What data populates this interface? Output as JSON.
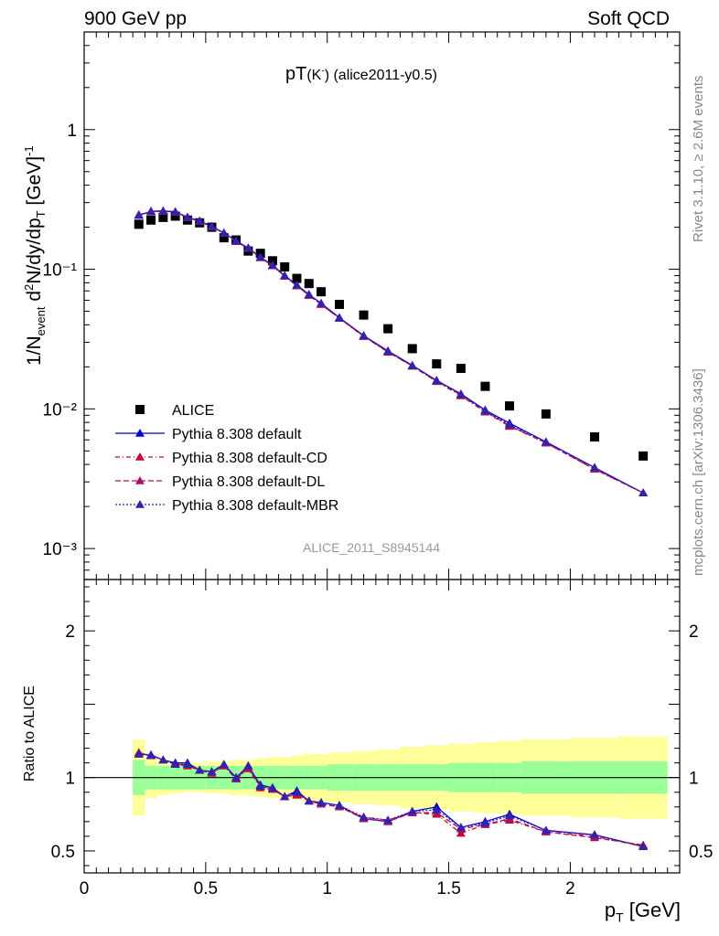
{
  "header": {
    "left": "900 GeV pp",
    "right": "Soft QCD"
  },
  "side_text": {
    "rivet": "Rivet 3.1.10, ≥ 2.6M events",
    "mcplots": "mcplots.cern.ch [arXiv:1306.3436]"
  },
  "chart_data": [
    {
      "type": "scatter",
      "title": "pT(K⁻) (alice2011-y0.5)",
      "title_main": "pT",
      "title_sub": "(K",
      "title_sup": "-",
      "title_rest": ") (alice2011-y0.5)",
      "watermark": "ALICE_2011_S8945144",
      "xlabel": "p_T [GeV]",
      "ylabel": "1/N_event d²N/dy/dp_T [GeV]⁻¹",
      "xlim": [
        0,
        2.45
      ],
      "ylim": [
        0.0006,
        5.0
      ],
      "yscale": "log",
      "y_tick_labels": [
        "10⁻³",
        "10⁻²",
        "10⁻¹",
        "1"
      ],
      "legend_position": "bottom-left",
      "x": [
        0.225,
        0.275,
        0.325,
        0.375,
        0.425,
        0.475,
        0.525,
        0.575,
        0.625,
        0.675,
        0.725,
        0.775,
        0.825,
        0.875,
        0.925,
        0.975,
        1.05,
        1.15,
        1.25,
        1.35,
        1.45,
        1.55,
        1.65,
        1.75,
        1.9,
        2.1,
        2.3
      ],
      "series": [
        {
          "name": "ALICE",
          "color": "#000000",
          "marker": "square",
          "values": [
            0.21,
            0.225,
            0.235,
            0.24,
            0.225,
            0.215,
            0.2,
            0.168,
            0.162,
            0.135,
            0.13,
            0.115,
            0.104,
            0.086,
            0.079,
            0.069,
            0.056,
            0.047,
            0.0375,
            0.027,
            0.021,
            0.0195,
            0.0145,
            0.0105,
            0.0092,
            0.0063,
            0.0046
          ]
        },
        {
          "name": "Pythia 8.308 default",
          "color": "#0000cc",
          "marker": "triangle",
          "dash": "",
          "values": [
            0.243,
            0.26,
            0.262,
            0.258,
            0.236,
            0.222,
            0.203,
            0.182,
            0.16,
            0.142,
            0.122,
            0.107,
            0.09,
            0.077,
            0.066,
            0.057,
            0.045,
            0.0335,
            0.026,
            0.0205,
            0.016,
            0.0128,
            0.0098,
            0.0079,
            0.0058,
            0.0038,
            0.0025
          ]
        },
        {
          "name": "Pythia 8.308 default-CD",
          "color": "#cc0033",
          "marker": "triangle",
          "dash": "5,3,1,3",
          "values": [
            0.246,
            0.259,
            0.26,
            0.256,
            0.234,
            0.22,
            0.201,
            0.181,
            0.158,
            0.141,
            0.121,
            0.106,
            0.089,
            0.076,
            0.065,
            0.056,
            0.0445,
            0.033,
            0.0255,
            0.0202,
            0.0157,
            0.0124,
            0.0095,
            0.0075,
            0.0057,
            0.0037,
            0.0025
          ]
        },
        {
          "name": "Pythia 8.308 default-DL",
          "color": "#aa1166",
          "marker": "triangle",
          "dash": "6,3",
          "values": [
            0.245,
            0.258,
            0.26,
            0.257,
            0.235,
            0.22,
            0.202,
            0.181,
            0.158,
            0.141,
            0.121,
            0.106,
            0.089,
            0.076,
            0.065,
            0.056,
            0.0445,
            0.0332,
            0.0256,
            0.0203,
            0.0158,
            0.0126,
            0.0096,
            0.0076,
            0.0057,
            0.0037,
            0.0025
          ]
        },
        {
          "name": "Pythia 8.308 default-MBR",
          "color": "#3322aa",
          "marker": "triangle",
          "dash": "2,2",
          "values": [
            0.244,
            0.259,
            0.261,
            0.257,
            0.235,
            0.221,
            0.202,
            0.182,
            0.159,
            0.142,
            0.122,
            0.107,
            0.09,
            0.077,
            0.066,
            0.057,
            0.0448,
            0.0333,
            0.0258,
            0.0204,
            0.0159,
            0.0127,
            0.0097,
            0.0077,
            0.0058,
            0.0038,
            0.0025
          ]
        }
      ]
    },
    {
      "type": "line",
      "ylabel": "Ratio to ALICE",
      "xlim": [
        0,
        2.45
      ],
      "ylim": [
        0.35,
        2.35
      ],
      "x_tick_labels": [
        "0",
        "0.5",
        "1",
        "1.5",
        "2"
      ],
      "y_tick_labels": [
        "0.5",
        "1",
        "2"
      ],
      "reference_line": 1.0,
      "bands": {
        "green_color": "#99ff99",
        "yellow_color": "#ffff99",
        "edges": [
          0.2,
          0.25,
          0.3,
          0.35,
          0.4,
          0.45,
          0.5,
          0.55,
          0.6,
          0.65,
          0.7,
          0.75,
          0.8,
          0.85,
          0.9,
          0.95,
          1.0,
          1.1,
          1.2,
          1.3,
          1.4,
          1.5,
          1.6,
          1.7,
          1.8,
          2.0,
          2.2,
          2.4
        ],
        "green_half": [
          0.12,
          0.08,
          0.08,
          0.08,
          0.08,
          0.08,
          0.08,
          0.08,
          0.08,
          0.08,
          0.08,
          0.08,
          0.08,
          0.08,
          0.08,
          0.08,
          0.09,
          0.09,
          0.09,
          0.09,
          0.09,
          0.1,
          0.1,
          0.1,
          0.11,
          0.11,
          0.11
        ],
        "yellow_half": [
          0.26,
          0.14,
          0.12,
          0.11,
          0.1,
          0.1,
          0.11,
          0.11,
          0.12,
          0.12,
          0.13,
          0.14,
          0.14,
          0.15,
          0.16,
          0.16,
          0.17,
          0.18,
          0.19,
          0.21,
          0.22,
          0.23,
          0.24,
          0.25,
          0.26,
          0.27,
          0.28
        ]
      },
      "x": [
        0.225,
        0.275,
        0.325,
        0.375,
        0.425,
        0.475,
        0.525,
        0.575,
        0.625,
        0.675,
        0.725,
        0.775,
        0.825,
        0.875,
        0.925,
        0.975,
        1.05,
        1.15,
        1.25,
        1.35,
        1.45,
        1.55,
        1.65,
        1.75,
        1.9,
        2.1,
        2.3
      ],
      "series": [
        {
          "name": "Pythia 8.308 default",
          "color": "#0000cc",
          "dash": "",
          "values": [
            1.16,
            1.155,
            1.12,
            1.1,
            1.1,
            1.05,
            1.04,
            1.09,
            1.0,
            1.08,
            0.95,
            0.93,
            0.87,
            0.91,
            0.84,
            0.83,
            0.81,
            0.72,
            0.7,
            0.77,
            0.8,
            0.66,
            0.7,
            0.75,
            0.64,
            0.61,
            0.53
          ]
        },
        {
          "name": "Pythia 8.308 default-CD",
          "color": "#cc0033",
          "dash": "5,3,1,3",
          "values": [
            1.17,
            1.15,
            1.12,
            1.09,
            1.08,
            1.05,
            1.03,
            1.08,
            0.99,
            1.06,
            0.93,
            0.92,
            0.87,
            0.88,
            0.84,
            0.82,
            0.8,
            0.73,
            0.71,
            0.76,
            0.75,
            0.62,
            0.68,
            0.71,
            0.63,
            0.6,
            0.53
          ]
        },
        {
          "name": "Pythia 8.308 default-DL",
          "color": "#aa1166",
          "dash": "6,3",
          "values": [
            1.17,
            1.15,
            1.12,
            1.09,
            1.09,
            1.05,
            1.03,
            1.08,
            0.99,
            1.07,
            0.94,
            0.92,
            0.87,
            0.89,
            0.84,
            0.82,
            0.8,
            0.72,
            0.7,
            0.76,
            0.76,
            0.65,
            0.68,
            0.72,
            0.63,
            0.59,
            0.54
          ]
        },
        {
          "name": "Pythia 8.308 default-MBR",
          "color": "#3322aa",
          "dash": "2,2",
          "values": [
            1.16,
            1.15,
            1.12,
            1.09,
            1.09,
            1.05,
            1.04,
            1.09,
            1.0,
            1.08,
            0.94,
            0.93,
            0.87,
            0.9,
            0.84,
            0.83,
            0.81,
            0.73,
            0.71,
            0.77,
            0.78,
            0.66,
            0.69,
            0.74,
            0.64,
            0.61,
            0.53
          ]
        }
      ]
    }
  ]
}
